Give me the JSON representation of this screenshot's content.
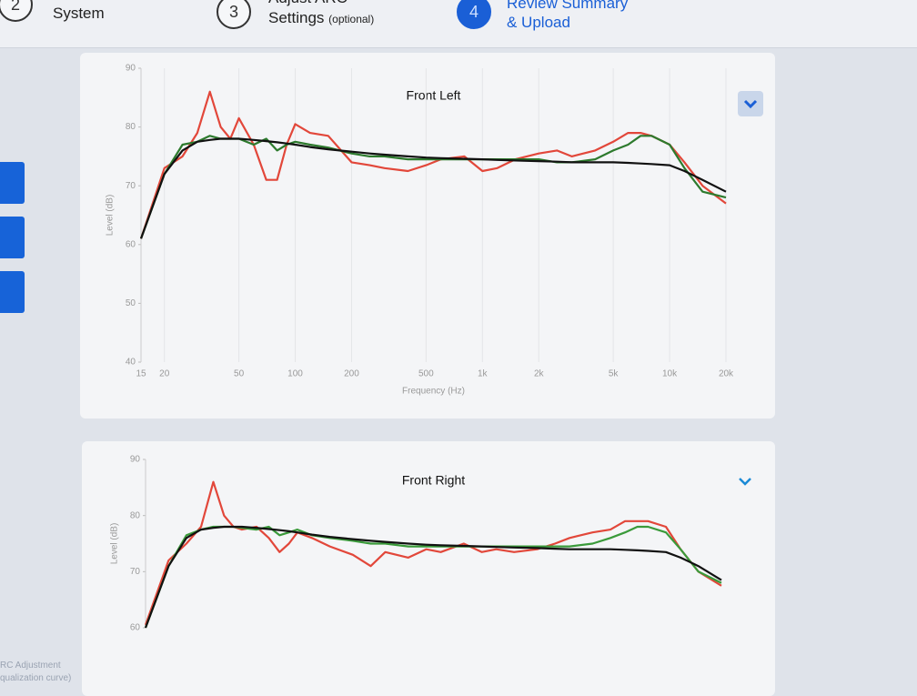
{
  "header": {
    "steps": [
      {
        "number": "2",
        "label": "System"
      },
      {
        "number": "3",
        "label": "Adjust ARC",
        "label2": "Settings",
        "note": "(optional)"
      },
      {
        "number": "4",
        "label": "Review Summary",
        "label2": "& Upload"
      }
    ]
  },
  "footer": {
    "lines": [
      "RC Adjustment",
      "qualization curve)"
    ]
  },
  "chart_data": [
    {
      "type": "line",
      "title": "Front Left",
      "x_label": "Frequency (Hz)",
      "y_label": "Level (dB)",
      "log_x": true,
      "grid": true,
      "x": [
        15,
        20,
        25,
        30,
        35,
        40,
        45,
        50,
        60,
        70,
        80,
        90,
        100,
        120,
        150,
        200,
        250,
        300,
        400,
        500,
        600,
        800,
        1000,
        1200,
        1500,
        2000,
        2500,
        3000,
        4000,
        5000,
        6000,
        7000,
        8000,
        10000,
        12000,
        15000,
        20000
      ],
      "xlim": [
        15,
        20000
      ],
      "xticks": [
        15,
        20,
        50,
        100,
        200,
        500,
        {
          "value": 1000,
          "label": "1k"
        },
        {
          "value": 2000,
          "label": "2k"
        },
        {
          "value": 5000,
          "label": "5k"
        },
        {
          "value": 10000,
          "label": "10k"
        },
        {
          "value": 20000,
          "label": "20k"
        }
      ],
      "ylim": [
        40,
        90
      ],
      "yticks": [
        40,
        50,
        60,
        70,
        80,
        90
      ],
      "series": [
        {
          "color": "#e2473a",
          "values": [
            61,
            73,
            75,
            79,
            86,
            80,
            78,
            81.5,
            77,
            71,
            71,
            77,
            80.5,
            79,
            78.5,
            74,
            73.5,
            73,
            72.5,
            73.5,
            74.5,
            75,
            72.5,
            73,
            74.5,
            75.5,
            76,
            75,
            76,
            77.5,
            79,
            79,
            78.5,
            77,
            74,
            70,
            67
          ]
        },
        {
          "color": "#2d7a2d",
          "values": [
            61,
            72,
            77,
            77.5,
            78.5,
            78,
            78,
            78,
            77,
            78,
            76,
            77,
            77.5,
            77,
            76.5,
            75.5,
            75,
            75,
            74.5,
            74.5,
            74.5,
            74.5,
            74.5,
            74.5,
            74.5,
            74.5,
            74,
            74,
            74.5,
            76,
            77,
            78.5,
            78.5,
            77,
            73,
            69,
            68
          ]
        },
        {
          "color": "#111111",
          "values": [
            61,
            72,
            76,
            77.5,
            77.8,
            78,
            78,
            78,
            77.8,
            77.6,
            77.4,
            77.2,
            77,
            76.6,
            76.2,
            75.8,
            75.5,
            75.3,
            75,
            74.8,
            74.7,
            74.6,
            74.5,
            74.4,
            74.3,
            74.2,
            74.1,
            74,
            74,
            74,
            73.9,
            73.8,
            73.7,
            73.5,
            72.5,
            71,
            69
          ]
        }
      ]
    },
    {
      "type": "line",
      "title": "Front Right",
      "y_label": "Level (dB)",
      "log_x": true,
      "grid": true,
      "x": [
        15,
        20,
        25,
        30,
        35,
        40,
        45,
        50,
        60,
        70,
        80,
        90,
        100,
        120,
        150,
        200,
        250,
        300,
        400,
        500,
        600,
        800,
        1000,
        1200,
        1500,
        2000,
        2500,
        3000,
        4000,
        5000,
        6000,
        7000,
        8000,
        10000,
        12000,
        15000,
        20000
      ],
      "xlim": [
        15,
        20000
      ],
      "ylim": [
        60,
        90
      ],
      "yticks": [
        60,
        70,
        80,
        90
      ],
      "series": [
        {
          "color": "#e2473a",
          "values": [
            60.5,
            72,
            75,
            78,
            86,
            80,
            78,
            77.5,
            78,
            76,
            73.5,
            75,
            77,
            76,
            74.5,
            73,
            71,
            73.5,
            72.5,
            74,
            73.5,
            75,
            73.5,
            74,
            73.5,
            74,
            75,
            76,
            77,
            77.5,
            79,
            79,
            79,
            78,
            74,
            70,
            67.5
          ]
        },
        {
          "color": "#3a9a3a",
          "values": [
            60,
            71,
            76.5,
            77.5,
            78,
            78,
            78,
            77.8,
            77.5,
            78,
            76.5,
            77,
            77.5,
            76.5,
            76,
            75.5,
            75,
            75,
            74.5,
            74.5,
            74.5,
            74.5,
            74.5,
            74.5,
            74.5,
            74.5,
            74.5,
            74.5,
            75,
            76,
            77,
            78,
            78,
            77,
            74,
            70,
            68
          ]
        },
        {
          "color": "#111111",
          "values": [
            60,
            71,
            76,
            77.5,
            77.8,
            78,
            78,
            78,
            77.8,
            77.6,
            77.4,
            77.2,
            77,
            76.6,
            76.2,
            75.8,
            75.5,
            75.3,
            75,
            74.8,
            74.7,
            74.6,
            74.5,
            74.4,
            74.3,
            74.2,
            74.1,
            74,
            74,
            74,
            73.9,
            73.8,
            73.7,
            73.5,
            72.5,
            71,
            68.5
          ]
        }
      ]
    }
  ]
}
